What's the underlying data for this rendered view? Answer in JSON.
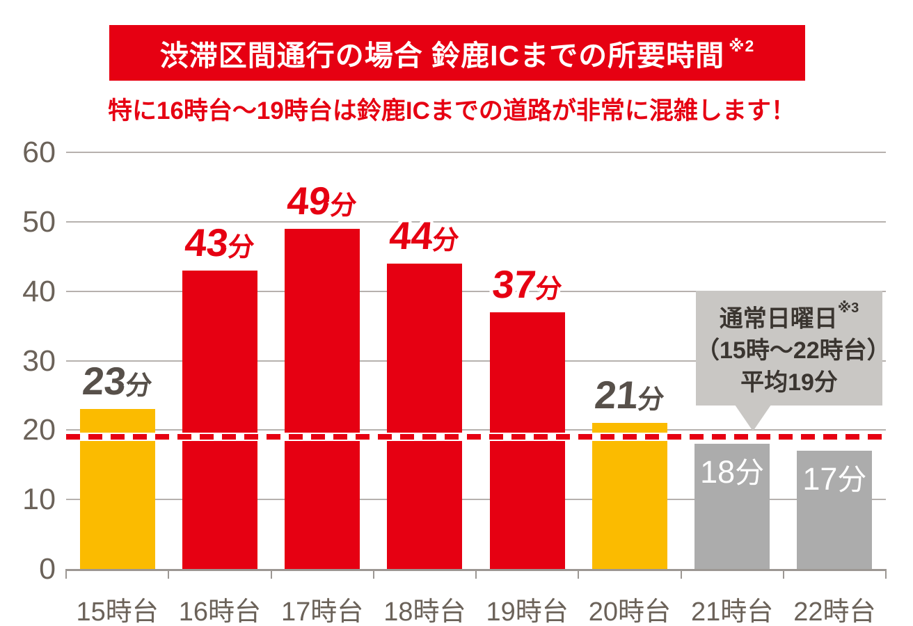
{
  "banner": {
    "text": "渋滞区間通行の場合 鈴鹿ICまでの所要時間",
    "sup": "※2",
    "bg_color": "#E60012",
    "text_color": "#ffffff"
  },
  "subtitle": {
    "text": "特に16時台～19時台は鈴鹿ICまでの道路が非常に混雑します！",
    "color": "#E60012"
  },
  "chart_data": {
    "type": "bar",
    "title": "渋滞区間通行の場合 鈴鹿ICまでの所要時間 ※2",
    "categories": [
      "15時台",
      "16時台",
      "17時台",
      "18時台",
      "19時台",
      "20時台",
      "21時台",
      "22時台"
    ],
    "values": [
      23,
      43,
      49,
      44,
      37,
      21,
      18,
      17
    ],
    "unit": "分",
    "value_labels": [
      "23分",
      "43分",
      "49分",
      "44分",
      "37分",
      "21分",
      "18分",
      "17分"
    ],
    "bar_colors": [
      "#FBBB00",
      "#E60012",
      "#E60012",
      "#E60012",
      "#E60012",
      "#FBBB00",
      "#ACACAC",
      "#ACACAC"
    ],
    "label_styles": [
      "outline-gray",
      "outline-red",
      "outline-red",
      "outline-red",
      "outline-red",
      "outline-gray",
      "inside-white",
      "inside-white"
    ],
    "label_colors": {
      "outline-gray": "#57504A",
      "outline-red": "#E60012",
      "inside-white": "#ffffff"
    },
    "xlabel": "",
    "ylabel": "",
    "ylim": [
      0,
      60
    ],
    "yticks": [
      0,
      10,
      20,
      30,
      40,
      50,
      60
    ],
    "grid": true,
    "legend": "none",
    "average_line": {
      "value": 19,
      "color": "#E60012",
      "style": "dashed",
      "callout_lines": [
        "通常日曜日",
        "（15時～22時台）",
        "平均19分"
      ],
      "callout_sup": "※3",
      "callout_bg": "#C9C7C4"
    }
  },
  "colors": {
    "red": "#E60012",
    "yellow": "#FBBB00",
    "gray_bar": "#ACACAC",
    "gridline": "#B6B1AE",
    "axis": "#9C9793",
    "axis_text": "#6B6259",
    "callout_bg": "#C9C7C4",
    "callout_text": "#3A3530",
    "background": "#ffffff"
  }
}
